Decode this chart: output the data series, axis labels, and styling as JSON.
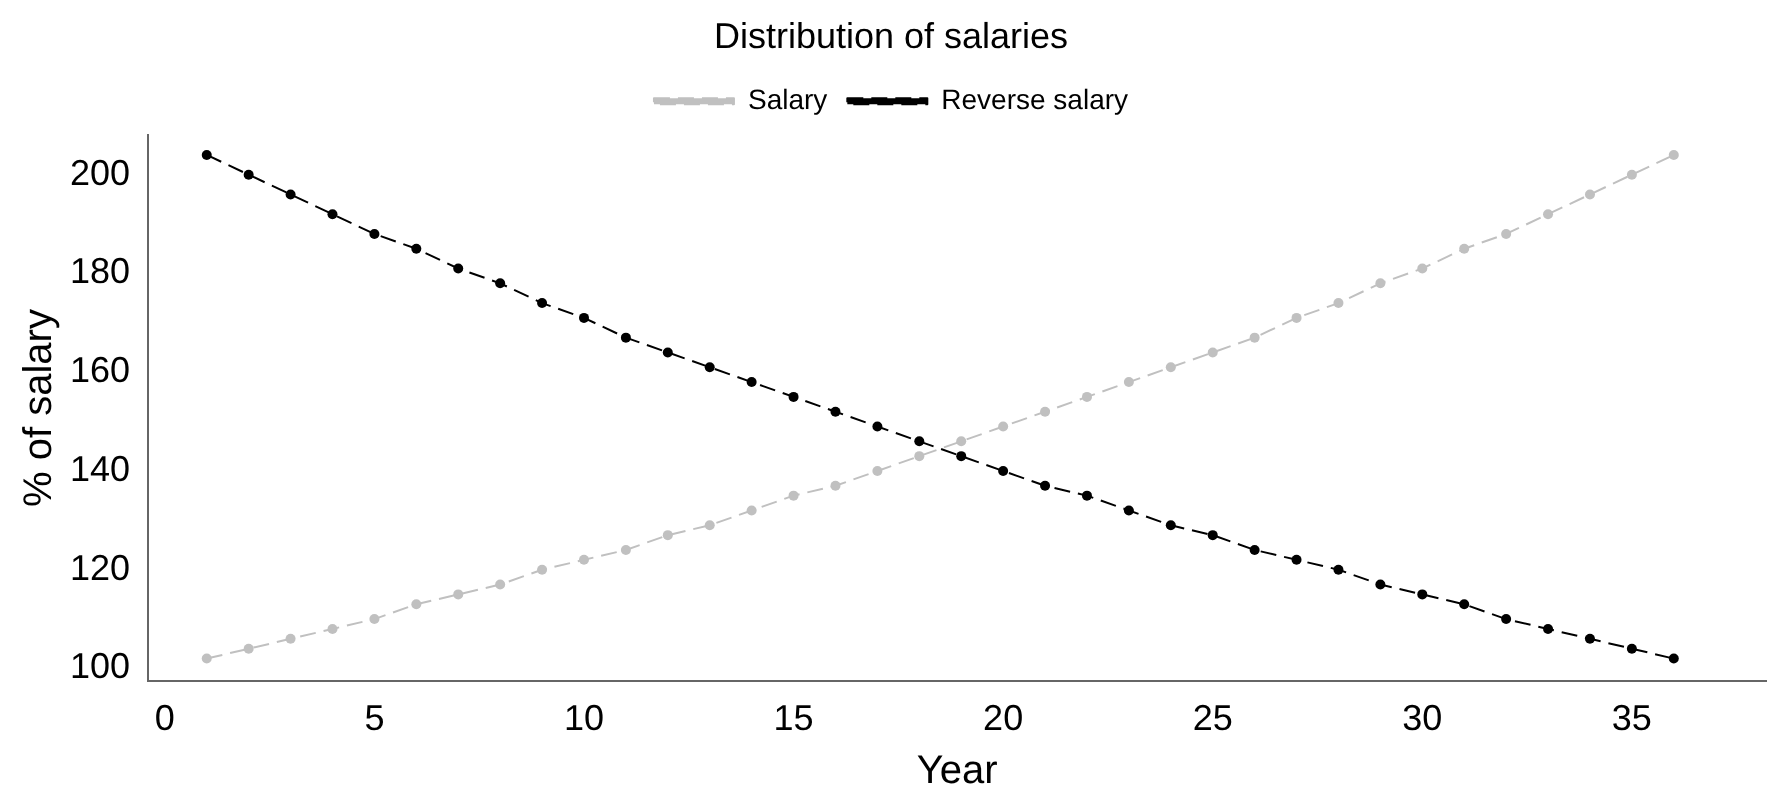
{
  "chart_data": {
    "type": "line",
    "title": "Distribution of salaries",
    "xlabel": "Year",
    "ylabel": "% of salary",
    "x": [
      1,
      2,
      3,
      4,
      5,
      6,
      7,
      8,
      9,
      10,
      11,
      12,
      13,
      14,
      15,
      16,
      17,
      18,
      19,
      20,
      21,
      22,
      23,
      24,
      25,
      26,
      27,
      28,
      29,
      30,
      31,
      32,
      33,
      34,
      35,
      36
    ],
    "series": [
      {
        "name": "Salary",
        "color": "#c0c0c0",
        "line_style": "dashed",
        "values": [
          102,
          104,
          106,
          108,
          110,
          113,
          115,
          117,
          120,
          122,
          124,
          127,
          129,
          132,
          135,
          137,
          140,
          143,
          146,
          149,
          152,
          155,
          158,
          161,
          164,
          167,
          171,
          174,
          178,
          181,
          185,
          188,
          192,
          196,
          200,
          204
        ]
      },
      {
        "name": "Reverse salary",
        "color": "#000000",
        "line_style": "dashed",
        "values": [
          204,
          200,
          196,
          192,
          188,
          185,
          181,
          178,
          174,
          171,
          167,
          164,
          161,
          158,
          155,
          152,
          149,
          146,
          143,
          140,
          137,
          135,
          132,
          129,
          127,
          124,
          122,
          120,
          117,
          115,
          113,
          110,
          108,
          106,
          104,
          102
        ]
      }
    ],
    "xlim": [
      -0.4,
      38.2
    ],
    "xticks": [
      0,
      5,
      10,
      15,
      20,
      25,
      30,
      35
    ],
    "ylim": [
      97.5,
      208
    ],
    "yticks": [
      100,
      120,
      140,
      160,
      180,
      200
    ],
    "grid": false,
    "legend": "top",
    "marker": "circle"
  }
}
